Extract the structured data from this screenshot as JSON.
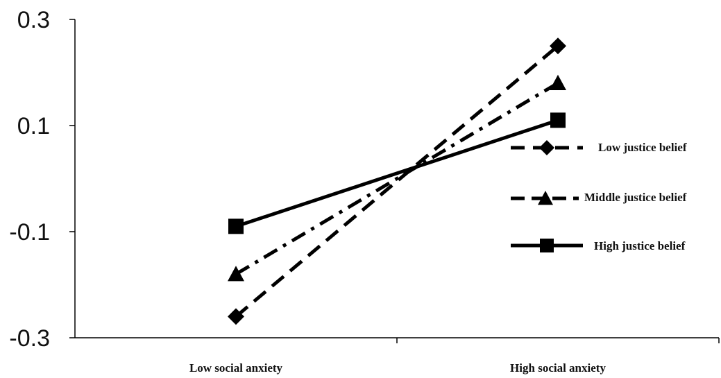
{
  "chart_data": {
    "type": "line",
    "categories": [
      "Low social anxiety",
      "High social anxiety"
    ],
    "ylim": [
      -0.3,
      0.3
    ],
    "yticks": [
      "0.3",
      "0.1",
      "-0.1",
      "-0.3"
    ],
    "ytick_values": [
      0.3,
      0.1,
      -0.1,
      -0.3
    ],
    "series": [
      {
        "name": "Low justice belief",
        "values": [
          -0.26,
          0.25
        ],
        "marker": "diamond",
        "dash": "dashed"
      },
      {
        "name": "Middle justice belief",
        "values": [
          -0.18,
          0.18
        ],
        "marker": "triangle",
        "dash": "dash-dot"
      },
      {
        "name": "High justice belief",
        "values": [
          -0.09,
          0.11
        ],
        "marker": "square",
        "dash": "solid"
      }
    ],
    "legend_position": "right",
    "grid": false,
    "line_color": "#000000"
  }
}
